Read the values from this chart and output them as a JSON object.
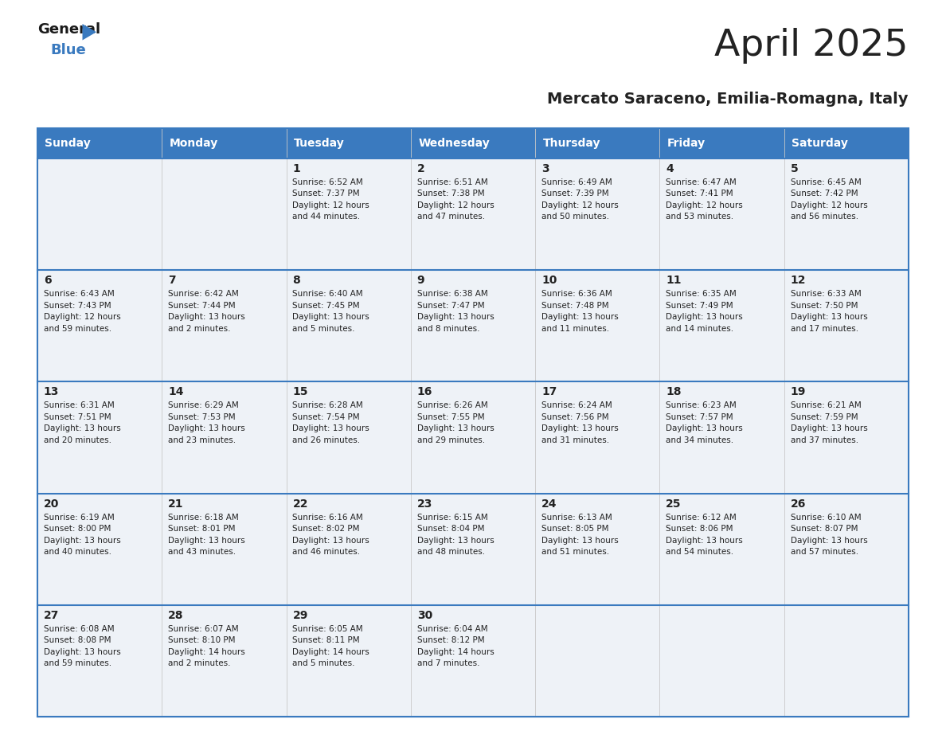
{
  "title": "April 2025",
  "subtitle": "Mercato Saraceno, Emilia-Romagna, Italy",
  "header_bg_color": "#3a7abf",
  "header_text_color": "#ffffff",
  "cell_bg_color": "#eef2f7",
  "border_color": "#3a7abf",
  "row_line_color": "#3a7abf",
  "col_line_color": "#cccccc",
  "text_color": "#222222",
  "days_of_week": [
    "Sunday",
    "Monday",
    "Tuesday",
    "Wednesday",
    "Thursday",
    "Friday",
    "Saturday"
  ],
  "weeks": [
    [
      {
        "day": "",
        "info": ""
      },
      {
        "day": "",
        "info": ""
      },
      {
        "day": "1",
        "info": "Sunrise: 6:52 AM\nSunset: 7:37 PM\nDaylight: 12 hours\nand 44 minutes."
      },
      {
        "day": "2",
        "info": "Sunrise: 6:51 AM\nSunset: 7:38 PM\nDaylight: 12 hours\nand 47 minutes."
      },
      {
        "day": "3",
        "info": "Sunrise: 6:49 AM\nSunset: 7:39 PM\nDaylight: 12 hours\nand 50 minutes."
      },
      {
        "day": "4",
        "info": "Sunrise: 6:47 AM\nSunset: 7:41 PM\nDaylight: 12 hours\nand 53 minutes."
      },
      {
        "day": "5",
        "info": "Sunrise: 6:45 AM\nSunset: 7:42 PM\nDaylight: 12 hours\nand 56 minutes."
      }
    ],
    [
      {
        "day": "6",
        "info": "Sunrise: 6:43 AM\nSunset: 7:43 PM\nDaylight: 12 hours\nand 59 minutes."
      },
      {
        "day": "7",
        "info": "Sunrise: 6:42 AM\nSunset: 7:44 PM\nDaylight: 13 hours\nand 2 minutes."
      },
      {
        "day": "8",
        "info": "Sunrise: 6:40 AM\nSunset: 7:45 PM\nDaylight: 13 hours\nand 5 minutes."
      },
      {
        "day": "9",
        "info": "Sunrise: 6:38 AM\nSunset: 7:47 PM\nDaylight: 13 hours\nand 8 minutes."
      },
      {
        "day": "10",
        "info": "Sunrise: 6:36 AM\nSunset: 7:48 PM\nDaylight: 13 hours\nand 11 minutes."
      },
      {
        "day": "11",
        "info": "Sunrise: 6:35 AM\nSunset: 7:49 PM\nDaylight: 13 hours\nand 14 minutes."
      },
      {
        "day": "12",
        "info": "Sunrise: 6:33 AM\nSunset: 7:50 PM\nDaylight: 13 hours\nand 17 minutes."
      }
    ],
    [
      {
        "day": "13",
        "info": "Sunrise: 6:31 AM\nSunset: 7:51 PM\nDaylight: 13 hours\nand 20 minutes."
      },
      {
        "day": "14",
        "info": "Sunrise: 6:29 AM\nSunset: 7:53 PM\nDaylight: 13 hours\nand 23 minutes."
      },
      {
        "day": "15",
        "info": "Sunrise: 6:28 AM\nSunset: 7:54 PM\nDaylight: 13 hours\nand 26 minutes."
      },
      {
        "day": "16",
        "info": "Sunrise: 6:26 AM\nSunset: 7:55 PM\nDaylight: 13 hours\nand 29 minutes."
      },
      {
        "day": "17",
        "info": "Sunrise: 6:24 AM\nSunset: 7:56 PM\nDaylight: 13 hours\nand 31 minutes."
      },
      {
        "day": "18",
        "info": "Sunrise: 6:23 AM\nSunset: 7:57 PM\nDaylight: 13 hours\nand 34 minutes."
      },
      {
        "day": "19",
        "info": "Sunrise: 6:21 AM\nSunset: 7:59 PM\nDaylight: 13 hours\nand 37 minutes."
      }
    ],
    [
      {
        "day": "20",
        "info": "Sunrise: 6:19 AM\nSunset: 8:00 PM\nDaylight: 13 hours\nand 40 minutes."
      },
      {
        "day": "21",
        "info": "Sunrise: 6:18 AM\nSunset: 8:01 PM\nDaylight: 13 hours\nand 43 minutes."
      },
      {
        "day": "22",
        "info": "Sunrise: 6:16 AM\nSunset: 8:02 PM\nDaylight: 13 hours\nand 46 minutes."
      },
      {
        "day": "23",
        "info": "Sunrise: 6:15 AM\nSunset: 8:04 PM\nDaylight: 13 hours\nand 48 minutes."
      },
      {
        "day": "24",
        "info": "Sunrise: 6:13 AM\nSunset: 8:05 PM\nDaylight: 13 hours\nand 51 minutes."
      },
      {
        "day": "25",
        "info": "Sunrise: 6:12 AM\nSunset: 8:06 PM\nDaylight: 13 hours\nand 54 minutes."
      },
      {
        "day": "26",
        "info": "Sunrise: 6:10 AM\nSunset: 8:07 PM\nDaylight: 13 hours\nand 57 minutes."
      }
    ],
    [
      {
        "day": "27",
        "info": "Sunrise: 6:08 AM\nSunset: 8:08 PM\nDaylight: 13 hours\nand 59 minutes."
      },
      {
        "day": "28",
        "info": "Sunrise: 6:07 AM\nSunset: 8:10 PM\nDaylight: 14 hours\nand 2 minutes."
      },
      {
        "day": "29",
        "info": "Sunrise: 6:05 AM\nSunset: 8:11 PM\nDaylight: 14 hours\nand 5 minutes."
      },
      {
        "day": "30",
        "info": "Sunrise: 6:04 AM\nSunset: 8:12 PM\nDaylight: 14 hours\nand 7 minutes."
      },
      {
        "day": "",
        "info": ""
      },
      {
        "day": "",
        "info": ""
      },
      {
        "day": "",
        "info": ""
      }
    ]
  ],
  "logo_text_general": "General",
  "logo_text_blue": "Blue",
  "logo_triangle_color": "#3a7abf",
  "title_fontsize": 34,
  "subtitle_fontsize": 14,
  "header_fontsize": 10,
  "day_num_fontsize": 10,
  "info_fontsize": 7.5
}
